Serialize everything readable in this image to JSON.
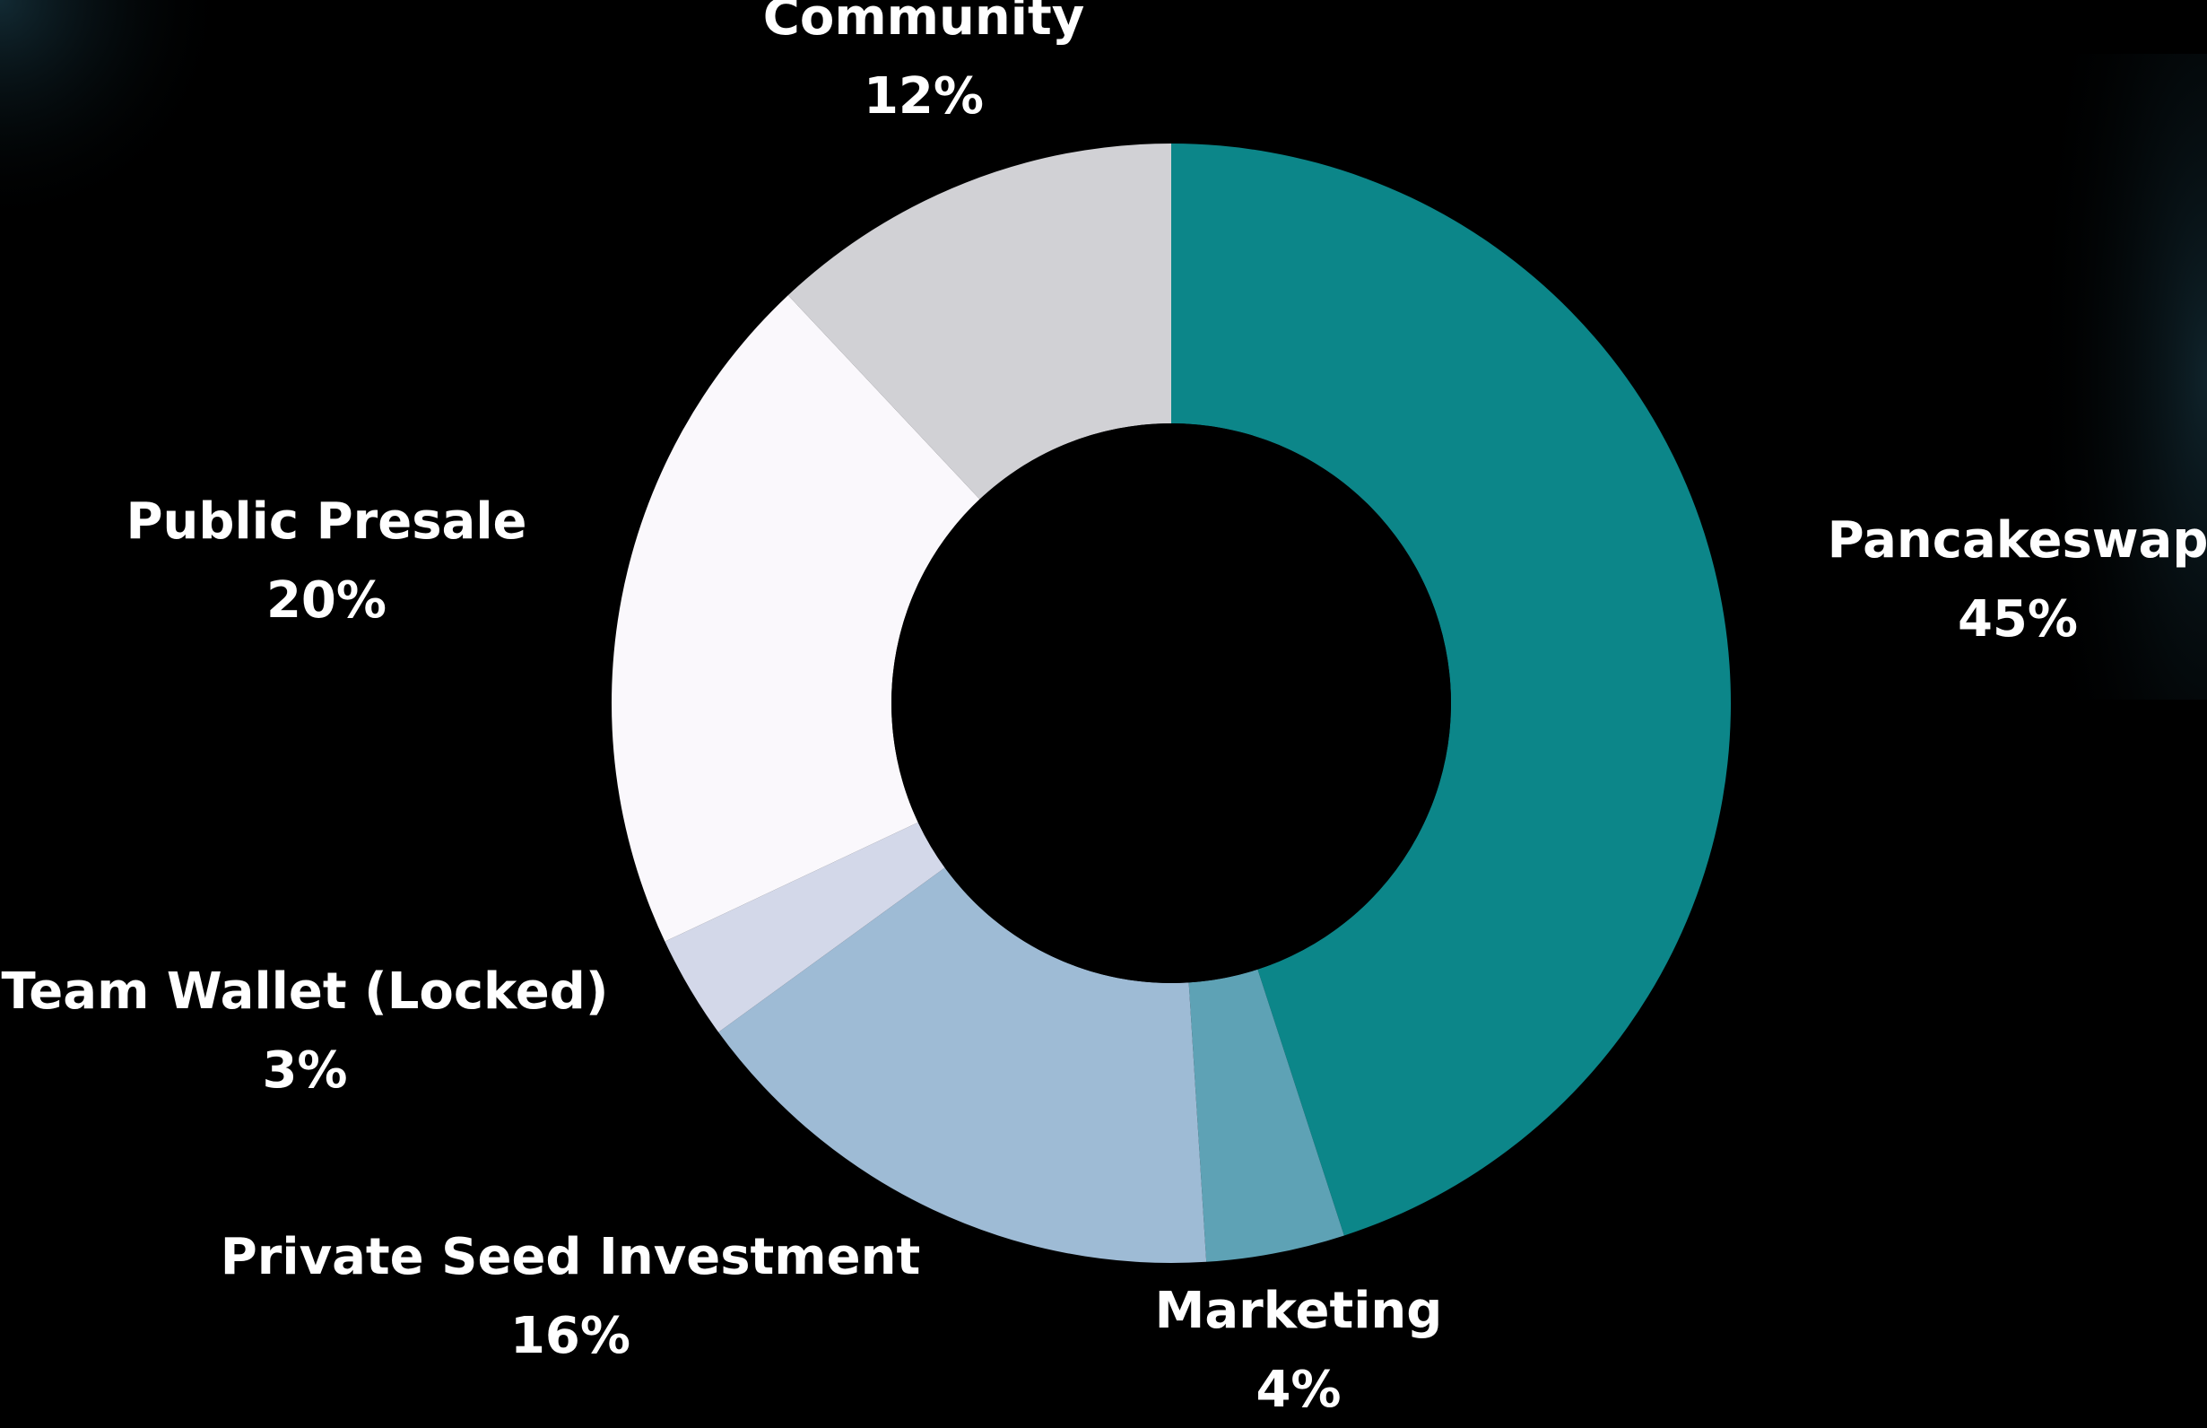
{
  "chart_data": {
    "type": "pie",
    "donut": true,
    "slices": [
      {
        "label": "Pancakeswap",
        "value": 45,
        "value_label": "45%",
        "color": "#0C8689"
      },
      {
        "label": "Marketing",
        "value": 4,
        "value_label": "4%",
        "color": "#5EA2B5"
      },
      {
        "label": "Private Seed Investment",
        "value": 16,
        "value_label": "16%",
        "color": "#9EBBD5"
      },
      {
        "label": "Team Wallet (Locked)",
        "value": 3,
        "value_label": "3%",
        "color": "#D3D8E9"
      },
      {
        "label": "Public Presale",
        "value": 20,
        "value_label": "20%",
        "color": "#FAF8FC"
      },
      {
        "label": "Community",
        "value": 12,
        "value_label": "12%",
        "color": "#D1D1D5"
      }
    ]
  },
  "colors": {
    "background": "#000000",
    "label_text": "#FFFFFF"
  }
}
